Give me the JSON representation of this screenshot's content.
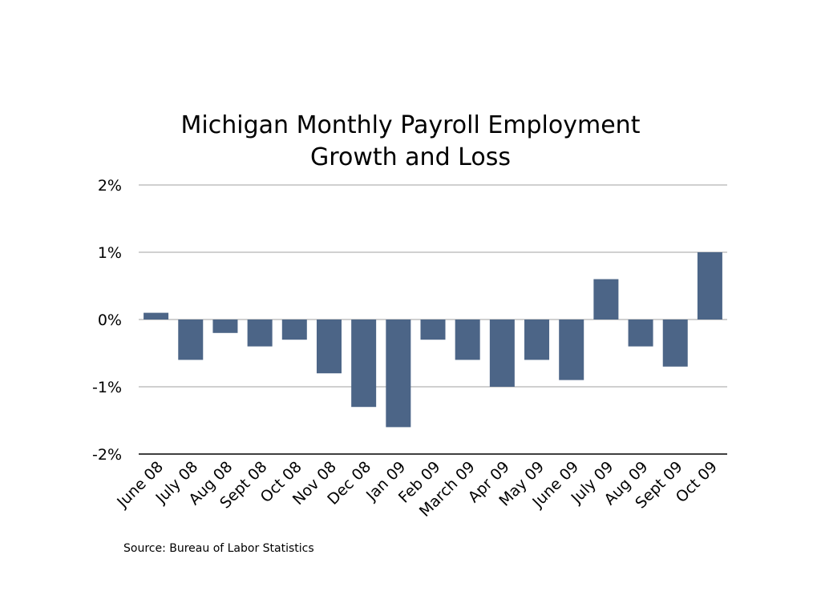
{
  "chart_data": {
    "type": "bar",
    "title": [
      "Michigan Monthly Payroll Employment",
      "Growth and Loss"
    ],
    "xlabel": "",
    "ylabel": "",
    "ylim": [
      -2,
      2
    ],
    "yticks": [
      2,
      1,
      0,
      -1,
      -2
    ],
    "ytick_labels": [
      "2%",
      "1%",
      "0%",
      "-1%",
      "-2%"
    ],
    "grid": true,
    "bar_color": "#4c6587",
    "categories": [
      "June 08",
      "July 08",
      "Aug 08",
      "Sept 08",
      "Oct 08",
      "Nov 08",
      "Dec 08",
      "Jan 09",
      "Feb 09",
      "March 09",
      "Apr 09",
      "May 09",
      "June 09",
      "July 09",
      "Aug 09",
      "Sept 09",
      "Oct 09"
    ],
    "values": [
      0.1,
      -0.6,
      -0.2,
      -0.4,
      -0.3,
      -0.8,
      -1.3,
      -1.6,
      -0.3,
      -0.6,
      -1.0,
      -0.6,
      -0.9,
      0.6,
      -0.4,
      -0.7,
      1.0
    ],
    "unit": "%",
    "source": "Source: Bureau of Labor Statistics"
  }
}
